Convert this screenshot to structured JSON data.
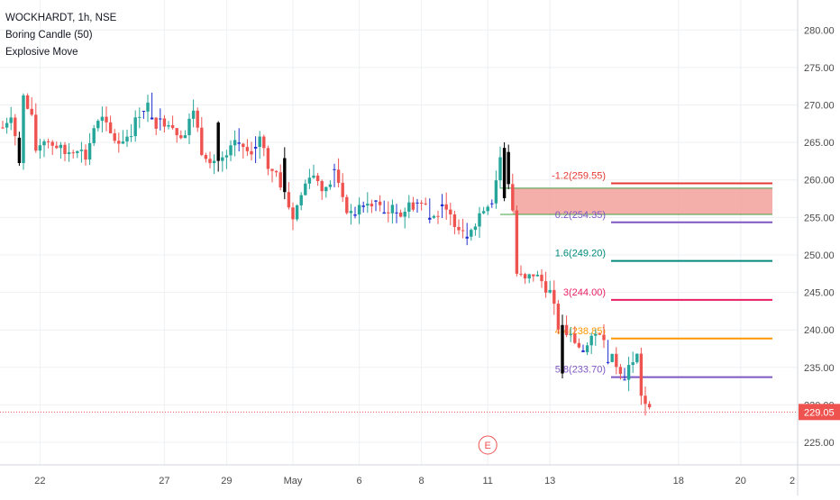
{
  "legend": {
    "symbol": "WOCKHARDT, 1h, NSE",
    "indicator_1": "Boring Candle (50)",
    "indicator_2": "Explosive Move"
  },
  "colors": {
    "up": "#26a69a",
    "down": "#ef5350",
    "boring": "#1f2fcf",
    "explosive": "#000000",
    "zone_fill": "#f4a6a1",
    "zone_edge": "#43a047",
    "price_line": "#ef5350",
    "grid": "#eef0f3",
    "axis_text": "#4a4a4a"
  },
  "chart_data": {
    "type": "candlestick",
    "y_axis": {
      "min": 222,
      "max": 284,
      "ticks": [
        "225.00",
        "230.00",
        "235.00",
        "240.00",
        "245.00",
        "250.00",
        "255.00",
        "260.00",
        "265.00",
        "270.00",
        "275.00",
        "280.00"
      ]
    },
    "x_axis": {
      "bars": 157,
      "labels": [
        {
          "text": "22",
          "bar": 9
        },
        {
          "text": "27",
          "bar": 39
        },
        {
          "text": "29",
          "bar": 54
        },
        {
          "text": "May",
          "bar": 70
        },
        {
          "text": "6",
          "bar": 86
        },
        {
          "text": "8",
          "bar": 101
        },
        {
          "text": "11",
          "bar": 117
        },
        {
          "text": "13",
          "bar": 132
        },
        {
          "text": "18",
          "bar": 163
        },
        {
          "text": "20",
          "bar": 178
        },
        {
          "text": "2",
          "bar": 194
        }
      ]
    },
    "last_price": {
      "value": 229.05,
      "label": "229.05"
    },
    "event_marker": {
      "label": "E",
      "bar": 117
    },
    "demand_zone": {
      "top": 258.9,
      "bottom": 255.4,
      "start_bar": 123
    },
    "fib_levels": [
      {
        "label": "-1.2(259.55)",
        "price": 259.55,
        "color": "#e53935"
      },
      {
        "label": "0.2(254.35)",
        "price": 254.35,
        "color": "#7e57c2"
      },
      {
        "label": "1.6(249.20)",
        "price": 249.2,
        "color": "#00897b"
      },
      {
        "label": "3(244.00)",
        "price": 244.0,
        "color": "#e91e63"
      },
      {
        "label": "4.4(238.85)",
        "price": 238.85,
        "color": "#ff9800"
      },
      {
        "label": "5.8(233.70)",
        "price": 233.7,
        "color": "#7e57c2"
      }
    ],
    "price_path": [
      [
        0,
        267.0
      ],
      [
        2,
        269.0
      ],
      [
        3,
        266.0
      ],
      [
        4,
        262.0
      ],
      [
        5,
        271.0
      ],
      [
        7,
        268.0
      ],
      [
        8,
        264.0
      ],
      [
        10,
        265.5
      ],
      [
        13,
        264.5
      ],
      [
        15,
        263.5
      ],
      [
        18,
        264.5
      ],
      [
        20,
        263.0
      ],
      [
        22,
        267.0
      ],
      [
        24,
        268.0
      ],
      [
        26,
        266.0
      ],
      [
        28,
        265.0
      ],
      [
        30,
        266.0
      ],
      [
        31,
        266.5
      ],
      [
        33,
        269.0
      ],
      [
        35,
        270.0
      ],
      [
        37,
        267.5
      ],
      [
        40,
        268.0
      ],
      [
        42,
        266.5
      ],
      [
        44,
        266.0
      ],
      [
        46,
        269.5
      ],
      [
        48,
        264.0
      ],
      [
        50,
        263.0
      ],
      [
        52,
        262.5
      ],
      [
        54,
        263.0
      ],
      [
        56,
        265.0
      ],
      [
        58,
        264.5
      ],
      [
        60,
        263.0
      ],
      [
        62,
        266.0
      ],
      [
        64,
        262.0
      ],
      [
        66,
        261.0
      ],
      [
        68,
        258.0
      ],
      [
        70,
        255.0
      ],
      [
        72,
        258.0
      ],
      [
        74,
        261.0
      ],
      [
        76,
        260.0
      ],
      [
        78,
        258.5
      ],
      [
        80,
        261.0
      ],
      [
        82,
        257.0
      ],
      [
        84,
        255.5
      ],
      [
        86,
        256.0
      ],
      [
        88,
        256.5
      ],
      [
        90,
        257.0
      ],
      [
        92,
        255.5
      ],
      [
        94,
        256.0
      ],
      [
        96,
        255.5
      ],
      [
        98,
        256.5
      ],
      [
        100,
        257.0
      ],
      [
        102,
        256.5
      ],
      [
        104,
        255.0
      ],
      [
        106,
        256.0
      ],
      [
        108,
        255.0
      ],
      [
        110,
        254.0
      ],
      [
        112,
        253.0
      ],
      [
        114,
        254.5
      ],
      [
        116,
        256.5
      ],
      [
        118,
        257.5
      ],
      [
        120,
        263.0
      ],
      [
        121,
        264.5
      ],
      [
        122,
        259.0
      ],
      [
        123,
        256.0
      ],
      [
        124,
        247.5
      ],
      [
        126,
        246.5
      ],
      [
        128,
        247.5
      ],
      [
        130,
        246.5
      ],
      [
        132,
        245.0
      ],
      [
        134,
        240.5
      ],
      [
        136,
        239.5
      ],
      [
        138,
        238.5
      ],
      [
        140,
        237.0
      ],
      [
        142,
        238.5
      ],
      [
        144,
        240.0
      ],
      [
        146,
        236.5
      ],
      [
        148,
        235.5
      ],
      [
        150,
        234.0
      ],
      [
        152,
        236.0
      ],
      [
        153,
        236.5
      ],
      [
        154,
        231.5
      ],
      [
        155,
        230.0
      ],
      [
        156,
        229.05
      ]
    ],
    "boring_bars": [
      34,
      36,
      38,
      57,
      61,
      80,
      85,
      87,
      90,
      92,
      95,
      100,
      103,
      106,
      112,
      118,
      140,
      146,
      150
    ],
    "explosive_bars": [
      4,
      52,
      68,
      121,
      122,
      135
    ]
  }
}
